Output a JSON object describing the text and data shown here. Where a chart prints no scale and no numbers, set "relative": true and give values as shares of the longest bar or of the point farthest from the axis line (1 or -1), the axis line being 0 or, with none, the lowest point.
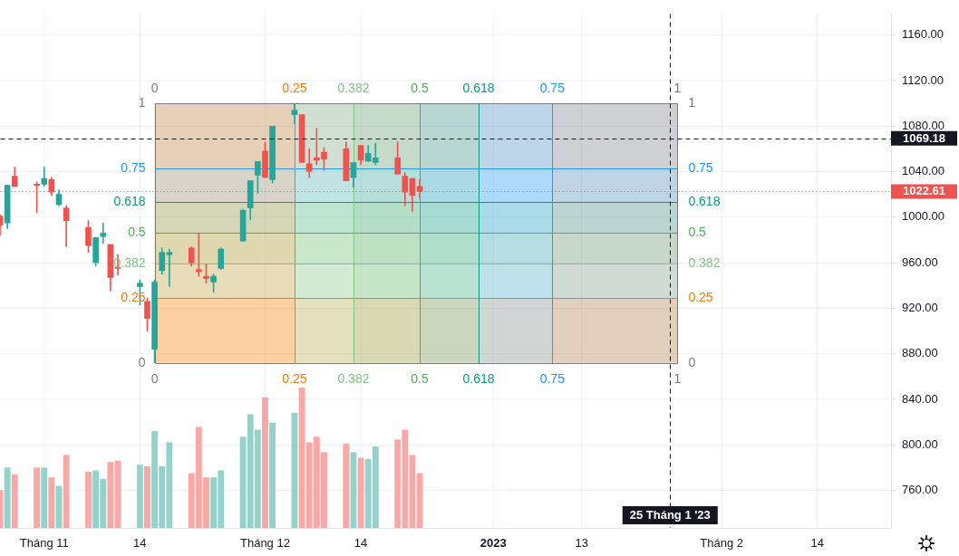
{
  "chart_data": [
    {
      "type": "candlestick",
      "x": [
        "2022-10-26",
        "2022-10-27",
        "2022-10-28",
        "2022-10-31",
        "2022-11-01",
        "2022-11-02",
        "2022-11-03",
        "2022-11-04",
        "2022-11-07",
        "2022-11-08",
        "2022-11-09",
        "2022-11-10",
        "2022-11-11",
        "2022-11-14",
        "2022-11-15",
        "2022-11-16",
        "2022-11-17",
        "2022-11-18",
        "2022-11-21",
        "2022-11-22",
        "2022-11-23",
        "2022-11-24",
        "2022-11-25",
        "2022-11-28",
        "2022-11-29",
        "2022-11-30",
        "2022-12-01",
        "2022-12-02",
        "2022-12-05",
        "2022-12-06",
        "2022-12-07",
        "2022-12-08",
        "2022-12-09",
        "2022-12-12",
        "2022-12-13",
        "2022-12-14",
        "2022-12-15",
        "2022-12-16",
        "2022-12-19",
        "2022-12-20",
        "2022-12-21",
        "2022-12-22"
      ],
      "ohlc": [
        [
          1001,
          1002,
          984,
          993
        ],
        [
          995,
          1028,
          990,
          1028
        ],
        [
          1036,
          1044,
          1027,
          1027
        ],
        [
          1029,
          1031,
          1004,
          1028
        ],
        [
          1029,
          1044,
          1027,
          1034
        ],
        [
          1033,
          1035,
          1019,
          1022
        ],
        [
          1011,
          1024,
          1010,
          1020
        ],
        [
          1008,
          1010,
          974,
          997
        ],
        [
          991,
          997,
          969,
          975
        ],
        [
          960,
          982,
          957,
          982
        ],
        [
          983,
          995,
          977,
          986
        ],
        [
          976,
          976,
          935,
          947
        ],
        [
          956,
          967,
          949,
          955
        ],
        [
          939,
          945,
          923,
          942
        ],
        [
          926,
          929,
          900,
          911
        ],
        [
          884,
          945,
          872,
          943
        ],
        [
          953,
          973,
          950,
          969
        ],
        [
          967,
          972,
          939,
          969
        ],
        [
          973,
          974,
          957,
          960
        ],
        [
          954,
          986,
          948,
          952
        ],
        [
          948,
          959,
          942,
          946
        ],
        [
          943,
          950,
          934,
          948
        ],
        [
          955,
          973,
          954,
          972
        ],
        [
          979,
          1007,
          979,
          1006
        ],
        [
          1008,
          1032,
          998,
          1032
        ],
        [
          1037,
          1049,
          1021,
          1049
        ],
        [
          1058,
          1066,
          1035,
          1035
        ],
        [
          1033,
          1080,
          1030,
          1080
        ],
        [
          1090,
          1100,
          1082,
          1094
        ],
        [
          1090,
          1090,
          1048,
          1048
        ],
        [
          1047,
          1060,
          1035,
          1040
        ],
        [
          1052,
          1078,
          1046,
          1050
        ],
        [
          1057,
          1061,
          1041,
          1051
        ],
        [
          1060,
          1066,
          1032,
          1032
        ],
        [
          1035,
          1048,
          1026,
          1048
        ],
        [
          1063,
          1063,
          1046,
          1050
        ],
        [
          1049,
          1063,
          1049,
          1056
        ],
        [
          1048,
          1065,
          1046,
          1052
        ],
        [
          1052,
          1066,
          1038,
          1038
        ],
        [
          1036,
          1039,
          1010,
          1022
        ],
        [
          1034,
          1034,
          1005,
          1019
        ],
        [
          1027,
          1033,
          1017,
          1022.61
        ]
      ],
      "colors": [
        "#ef5350",
        "#26a69a",
        "#ef5350",
        "#ef5350",
        "#26a69a",
        "#ef5350",
        "#26a69a",
        "#ef5350",
        "#ef5350",
        "#26a69a",
        "#26a69a",
        "#ef5350",
        "#ef5350",
        "#26a69a",
        "#ef5350",
        "#26a69a",
        "#26a69a",
        "#26a69a",
        "#ef5350",
        "#ef5350",
        "#ef5350",
        "#26a69a",
        "#26a69a",
        "#26a69a",
        "#26a69a",
        "#26a69a",
        "#ef5350",
        "#26a69a",
        "#26a69a",
        "#ef5350",
        "#ef5350",
        "#ef5350",
        "#ef5350",
        "#ef5350",
        "#26a69a",
        "#ef5350",
        "#26a69a",
        "#26a69a",
        "#ef5350",
        "#ef5350",
        "#ef5350",
        "#ef5350"
      ],
      "xlim": [
        "2022-10-26",
        "2023-02-24"
      ],
      "xticks": [
        {
          "value": "2022-11-01",
          "label": "Tháng 11"
        },
        {
          "value": "2022-11-14",
          "label": "14"
        },
        {
          "value": "2022-12-01",
          "label": "Tháng 12"
        },
        {
          "value": "2022-12-14",
          "label": "14"
        },
        {
          "value": "2023-01-01",
          "label": "2023"
        },
        {
          "value": "2023-01-13",
          "label": "13"
        },
        {
          "value": "2023-02-01",
          "label": "Tháng 2"
        },
        {
          "value": "2023-02-14",
          "label": "14"
        }
      ],
      "ylim": [
        727,
        1179
      ],
      "yticks": [
        {
          "value": 760,
          "label": "760.00"
        },
        {
          "value": 800,
          "label": "800.00"
        },
        {
          "value": 840,
          "label": "840.00"
        },
        {
          "value": 880,
          "label": "880.00"
        },
        {
          "value": 920,
          "label": "920.00"
        },
        {
          "value": 960,
          "label": "960.00"
        },
        {
          "value": 1000,
          "label": "1000.00"
        },
        {
          "value": 1040,
          "label": "1040.00"
        },
        {
          "value": 1080,
          "label": "1080.00"
        },
        {
          "value": 1120,
          "label": "1120.00"
        },
        {
          "value": 1160,
          "label": "1160.00"
        }
      ],
      "grid": true,
      "bands": [
        {
          "axis": "y",
          "from": 872,
          "to": 929,
          "color": "#f57c00"
        },
        {
          "axis": "y",
          "from": 929,
          "to": 959,
          "color": "#81c784"
        },
        {
          "axis": "y",
          "from": 959,
          "to": 986,
          "color": "#4caf50"
        },
        {
          "axis": "y",
          "from": 986,
          "to": 1013,
          "color": "#089981"
        },
        {
          "axis": "y",
          "from": 1013,
          "to": 1043,
          "color": "#2196f3"
        },
        {
          "axis": "y",
          "from": 1043,
          "to": 1100,
          "color": "#787b86"
        },
        {
          "axis": "x",
          "from": "2022-11-16",
          "to": "2022-12-05",
          "color": "#f57c00"
        },
        {
          "axis": "x",
          "from": "2022-12-05",
          "to": "2022-12-13",
          "color": "#81c784"
        },
        {
          "axis": "x",
          "from": "2022-12-13",
          "to": "2022-12-22",
          "color": "#4caf50"
        },
        {
          "axis": "x",
          "from": "2022-12-22",
          "to": "2022-12-30",
          "color": "#089981"
        },
        {
          "axis": "x",
          "from": "2022-12-30",
          "to": "2023-01-09",
          "color": "#2196f3"
        },
        {
          "axis": "x",
          "from": "2023-01-09",
          "to": "2023-01-26",
          "color": "#787b86"
        }
      ],
      "ref_lines": [
        {
          "axis": "y",
          "value": 872,
          "color": "#787b86",
          "line_style": "solid"
        },
        {
          "axis": "y",
          "value": 929,
          "color": "#f57c00",
          "line_style": "solid"
        },
        {
          "axis": "y",
          "value": 959,
          "color": "#81c784",
          "line_style": "solid"
        },
        {
          "axis": "y",
          "value": 986,
          "color": "#4caf50",
          "line_style": "solid"
        },
        {
          "axis": "y",
          "value": 1013,
          "color": "#089981",
          "line_style": "solid"
        },
        {
          "axis": "y",
          "value": 1043,
          "color": "#2196f3",
          "line_style": "solid"
        },
        {
          "axis": "y",
          "value": 1100,
          "color": "#787b86",
          "line_style": "solid"
        },
        {
          "axis": "x",
          "value": "2022-11-16",
          "color": "#787b86",
          "line_style": "solid"
        },
        {
          "axis": "x",
          "value": "2022-12-05",
          "color": "#f57c00",
          "line_style": "solid"
        },
        {
          "axis": "x",
          "value": "2022-12-13",
          "color": "#81c784",
          "line_style": "solid"
        },
        {
          "axis": "x",
          "value": "2022-12-22",
          "color": "#4caf50",
          "line_style": "solid"
        },
        {
          "axis": "x",
          "value": "2022-12-30",
          "color": "#089981",
          "line_style": "solid"
        },
        {
          "axis": "x",
          "value": "2023-01-09",
          "color": "#2196f3",
          "line_style": "solid"
        },
        {
          "axis": "x",
          "value": "2023-01-26",
          "color": "#787b86",
          "line_style": "solid"
        },
        {
          "axis": "y",
          "value": 1022.61,
          "label": "1022.61",
          "color": "#ef5350",
          "line_style": "dotted"
        },
        {
          "axis": "y",
          "value": 1069.18,
          "label": "1069.18",
          "color": "#131722",
          "line_style": "dashed"
        },
        {
          "axis": "x",
          "value": "2023-01-25",
          "label": "25 Tháng 1 '23",
          "color": "#131722",
          "line_style": "dashed"
        }
      ],
      "annotations": [
        {
          "text": "0",
          "x": "2022-11-16",
          "y": 872
        },
        {
          "text": "0.25",
          "x": "2022-11-16",
          "y": 929
        },
        {
          "text": "0.382",
          "x": "2022-11-16",
          "y": 959
        },
        {
          "text": "0.5",
          "x": "2022-11-16",
          "y": 986
        },
        {
          "text": "0.618",
          "x": "2022-11-16",
          "y": 1013
        },
        {
          "text": "0.75",
          "x": "2022-11-16",
          "y": 1043
        },
        {
          "text": "1",
          "x": "2022-11-16",
          "y": 1100
        },
        {
          "text": "0",
          "x": "2023-01-26",
          "y": 872
        },
        {
          "text": "0.25",
          "x": "2023-01-26",
          "y": 929
        },
        {
          "text": "0.382",
          "x": "2023-01-26",
          "y": 959
        },
        {
          "text": "0.5",
          "x": "2023-01-26",
          "y": 986
        },
        {
          "text": "0.618",
          "x": "2023-01-26",
          "y": 1013
        },
        {
          "text": "0.75",
          "x": "2023-01-26",
          "y": 1043
        },
        {
          "text": "1",
          "x": "2023-01-26",
          "y": 1100
        },
        {
          "text": "0",
          "x": "2022-11-16",
          "y": 1100
        },
        {
          "text": "0.25",
          "x": "2022-12-05",
          "y": 1100
        },
        {
          "text": "0.382",
          "x": "2022-12-13",
          "y": 1100
        },
        {
          "text": "0.5",
          "x": "2022-12-22",
          "y": 1100
        },
        {
          "text": "0.618",
          "x": "2022-12-30",
          "y": 1100
        },
        {
          "text": "0.75",
          "x": "2023-01-09",
          "y": 1100
        },
        {
          "text": "1",
          "x": "2023-01-26",
          "y": 1100
        },
        {
          "text": "0",
          "x": "2022-11-16",
          "y": 872
        },
        {
          "text": "0.25",
          "x": "2022-12-05",
          "y": 872
        },
        {
          "text": "0.382",
          "x": "2022-12-13",
          "y": 872
        },
        {
          "text": "0.5",
          "x": "2022-12-22",
          "y": 872
        },
        {
          "text": "0.618",
          "x": "2022-12-30",
          "y": 872
        },
        {
          "text": "0.75",
          "x": "2023-01-09",
          "y": 872
        },
        {
          "text": "1",
          "x": "2023-01-26",
          "y": 872
        }
      ]
    },
    {
      "type": "bar",
      "relative": true,
      "x": [
        "2022-10-26",
        "2022-10-27",
        "2022-10-28",
        "2022-10-31",
        "2022-11-01",
        "2022-11-02",
        "2022-11-03",
        "2022-11-04",
        "2022-11-07",
        "2022-11-08",
        "2022-11-09",
        "2022-11-10",
        "2022-11-11",
        "2022-11-14",
        "2022-11-15",
        "2022-11-16",
        "2022-11-17",
        "2022-11-18",
        "2022-11-21",
        "2022-11-22",
        "2022-11-23",
        "2022-11-24",
        "2022-11-25",
        "2022-11-28",
        "2022-11-29",
        "2022-11-30",
        "2022-12-01",
        "2022-12-02",
        "2022-12-05",
        "2022-12-06",
        "2022-12-07",
        "2022-12-08",
        "2022-12-09",
        "2022-12-12",
        "2022-12-13",
        "2022-12-14",
        "2022-12-15",
        "2022-12-16",
        "2022-12-19",
        "2022-12-20",
        "2022-12-21",
        "2022-12-22"
      ],
      "values": [
        0.27,
        0.43,
        0.38,
        0.43,
        0.43,
        0.36,
        0.3,
        0.52,
        0.4,
        0.41,
        0.35,
        0.47,
        0.48,
        0.45,
        0.44,
        0.69,
        0.44,
        0.61,
        0.39,
        0.72,
        0.36,
        0.36,
        0.41,
        0.65,
        0.81,
        0.7,
        0.93,
        0.75,
        0.82,
        1,
        0.61,
        0.65,
        0.54,
        0.6,
        0.54,
        0.5,
        0.49,
        0.58,
        0.63,
        0.7,
        0.52,
        0.39
      ],
      "colors": [
        "#f7a9a7",
        "#94d2cc",
        "#f7a9a7",
        "#f7a9a7",
        "#94d2cc",
        "#f7a9a7",
        "#94d2cc",
        "#f7a9a7",
        "#f7a9a7",
        "#94d2cc",
        "#94d2cc",
        "#f7a9a7",
        "#f7a9a7",
        "#94d2cc",
        "#f7a9a7",
        "#94d2cc",
        "#94d2cc",
        "#94d2cc",
        "#f7a9a7",
        "#f7a9a7",
        "#f7a9a7",
        "#94d2cc",
        "#94d2cc",
        "#94d2cc",
        "#94d2cc",
        "#94d2cc",
        "#f7a9a7",
        "#94d2cc",
        "#94d2cc",
        "#f7a9a7",
        "#f7a9a7",
        "#f7a9a7",
        "#f7a9a7",
        "#f7a9a7",
        "#94d2cc",
        "#f7a9a7",
        "#94d2cc",
        "#94d2cc",
        "#f7a9a7",
        "#f7a9a7",
        "#f7a9a7",
        "#f7a9a7"
      ],
      "xlim": [
        "2022-10-26",
        "2023-02-24"
      ],
      "tick_labels": false
    }
  ]
}
